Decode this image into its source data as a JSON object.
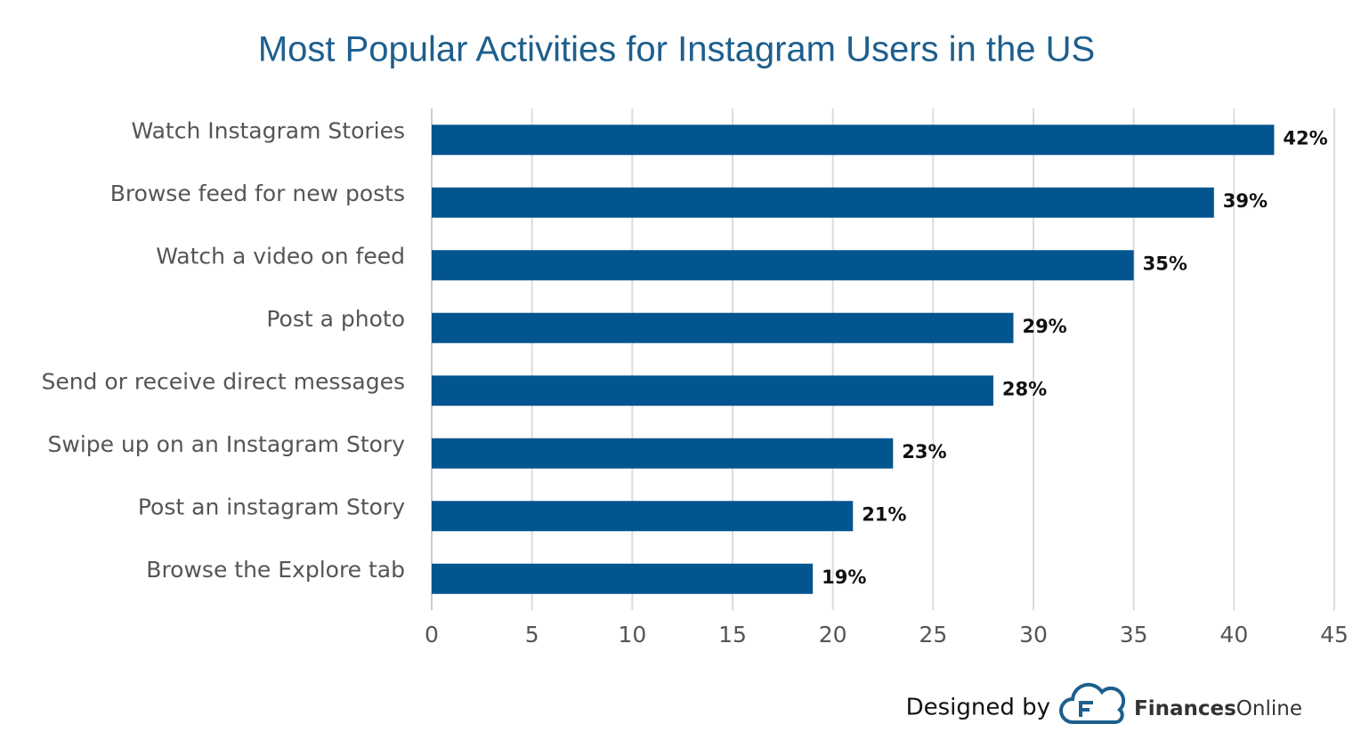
{
  "chart_data": {
    "type": "bar",
    "orientation": "horizontal",
    "title": "Most Popular Activities for Instagram Users in the US",
    "categories": [
      "Watch Instagram Stories",
      "Browse feed for new posts",
      "Watch a video on feed",
      "Post a photo",
      "Send or receive direct messages",
      "Swipe up on an Instagram Story",
      "Post an instagram Story",
      "Browse the Explore tab"
    ],
    "values": [
      42,
      39,
      35,
      29,
      28,
      23,
      21,
      19
    ],
    "value_labels": [
      "42%",
      "39%",
      "35%",
      "29%",
      "28%",
      "23%",
      "21%",
      "19%"
    ],
    "color": "#03558f",
    "xlim": [
      0,
      45
    ],
    "xticks": [
      0,
      5,
      10,
      15,
      20,
      25,
      30,
      35,
      40,
      45
    ],
    "grid": true
  },
  "footer": {
    "designed_by": "Designed by",
    "brand_bold": "Finances",
    "brand": "Online"
  }
}
